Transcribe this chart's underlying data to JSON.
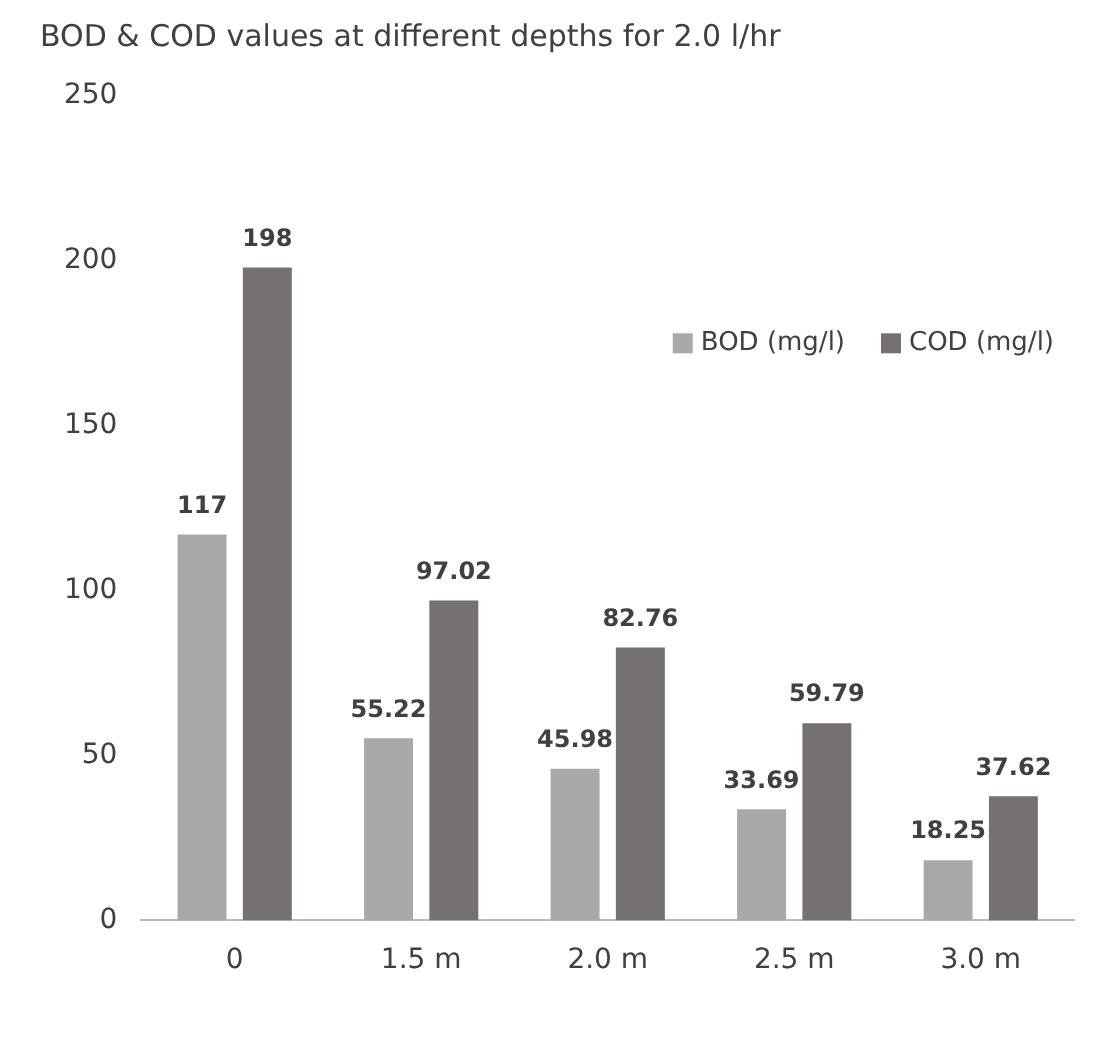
{
  "chart_data": {
    "type": "bar",
    "title": "BOD & COD values at different depths for 2.0 l/hr",
    "categories": [
      "0",
      "1.5 m",
      "2.0 m",
      "2.5 m",
      "3.0 m"
    ],
    "series": [
      {
        "name": "BOD (mg/l)",
        "color": "#a9a9a9",
        "values": [
          117,
          55.22,
          45.98,
          33.69,
          18.25
        ]
      },
      {
        "name": "COD (mg/l)",
        "color": "#757171",
        "values": [
          198,
          97.02,
          82.76,
          59.79,
          37.62
        ]
      }
    ],
    "ylim": [
      0,
      250
    ],
    "yticks": [
      0,
      50,
      100,
      150,
      200,
      250
    ],
    "grid": false,
    "legend": "top right",
    "data_labels": true
  }
}
